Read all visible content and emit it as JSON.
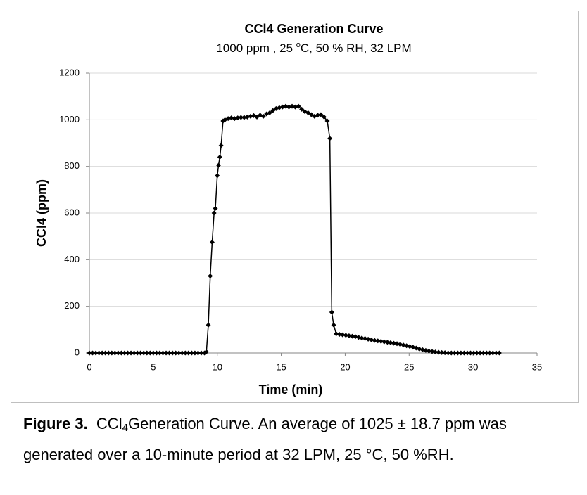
{
  "chart_data": {
    "type": "line",
    "title": "CCl4 Generation Curve",
    "subtitle": [
      "1000 ppm , 25 ",
      "o",
      "C, 50 % RH, 32 LPM"
    ],
    "x_label": "Time (min)",
    "y_label": "CCl4  (ppm)",
    "xlim": [
      0,
      35
    ],
    "xticks": [
      0,
      5,
      10,
      15,
      20,
      25,
      30,
      35
    ],
    "ylim": [
      0,
      1200
    ],
    "yticks": [
      0,
      200,
      400,
      600,
      800,
      1000,
      1200
    ],
    "grid": true,
    "series": [
      {
        "name": "CCl4",
        "color": "#000000",
        "x": [
          0,
          0.25,
          0.5,
          0.75,
          1,
          1.25,
          1.5,
          1.75,
          2,
          2.25,
          2.5,
          2.75,
          3,
          3.25,
          3.5,
          3.75,
          4,
          4.25,
          4.5,
          4.75,
          5,
          5.25,
          5.5,
          5.75,
          6,
          6.25,
          6.5,
          6.75,
          7,
          7.25,
          7.5,
          7.75,
          8,
          8.25,
          8.5,
          8.75,
          9,
          9.15,
          9.3,
          9.45,
          9.6,
          9.75,
          9.85,
          10,
          10.1,
          10.2,
          10.3,
          10.45,
          10.6,
          10.85,
          11.1,
          11.35,
          11.6,
          11.85,
          12.1,
          12.35,
          12.6,
          12.85,
          13.1,
          13.35,
          13.6,
          13.85,
          14.1,
          14.35,
          14.6,
          14.85,
          15.1,
          15.35,
          15.6,
          15.85,
          16.1,
          16.35,
          16.6,
          16.85,
          17.1,
          17.35,
          17.6,
          17.85,
          18.1,
          18.35,
          18.6,
          18.8,
          18.95,
          19.1,
          19.3,
          19.55,
          19.8,
          20.05,
          20.3,
          20.55,
          20.8,
          21.05,
          21.3,
          21.55,
          21.8,
          22.05,
          22.3,
          22.55,
          22.8,
          23.05,
          23.3,
          23.55,
          23.8,
          24.05,
          24.3,
          24.55,
          24.8,
          25.05,
          25.3,
          25.55,
          25.8,
          26.05,
          26.3,
          26.55,
          26.8,
          27.05,
          27.3,
          27.55,
          27.8,
          28.05,
          28.3,
          28.55,
          28.8,
          29.05,
          29.3,
          29.55,
          29.8,
          30.05,
          30.3,
          30.55,
          30.8,
          31.05,
          31.3,
          31.55,
          31.8,
          32.05
        ],
        "values": [
          0,
          0,
          0,
          0,
          0,
          0,
          0,
          0,
          0,
          0,
          0,
          0,
          0,
          0,
          0,
          0,
          0,
          0,
          0,
          0,
          0,
          0,
          0,
          0,
          0,
          0,
          0,
          0,
          0,
          0,
          0,
          0,
          0,
          0,
          0,
          0,
          0,
          5,
          120,
          330,
          475,
          600,
          620,
          760,
          805,
          840,
          890,
          995,
          1000,
          1005,
          1008,
          1005,
          1008,
          1010,
          1010,
          1012,
          1015,
          1018,
          1012,
          1020,
          1015,
          1025,
          1030,
          1040,
          1048,
          1052,
          1055,
          1058,
          1055,
          1058,
          1055,
          1058,
          1045,
          1035,
          1030,
          1022,
          1015,
          1020,
          1022,
          1012,
          995,
          920,
          175,
          120,
          82,
          80,
          78,
          76,
          74,
          72,
          70,
          67,
          64,
          62,
          59,
          56,
          54,
          52,
          50,
          48,
          46,
          44,
          42,
          40,
          37,
          34,
          31,
          28,
          25,
          21,
          17,
          14,
          11,
          8,
          6,
          4,
          3,
          2,
          1,
          0,
          0,
          0,
          0,
          0,
          0,
          0,
          0,
          0,
          0,
          0,
          0,
          0,
          0,
          0,
          0,
          0
        ]
      }
    ]
  },
  "caption": {
    "label": "Figure 3.",
    "parts": [
      "CCl",
      "4",
      "Generation Curve.  An average of 1025 ± 18.7 ppm was generated over a 10-minute period at 32 LPM, 25 °C, 50 %RH."
    ]
  }
}
